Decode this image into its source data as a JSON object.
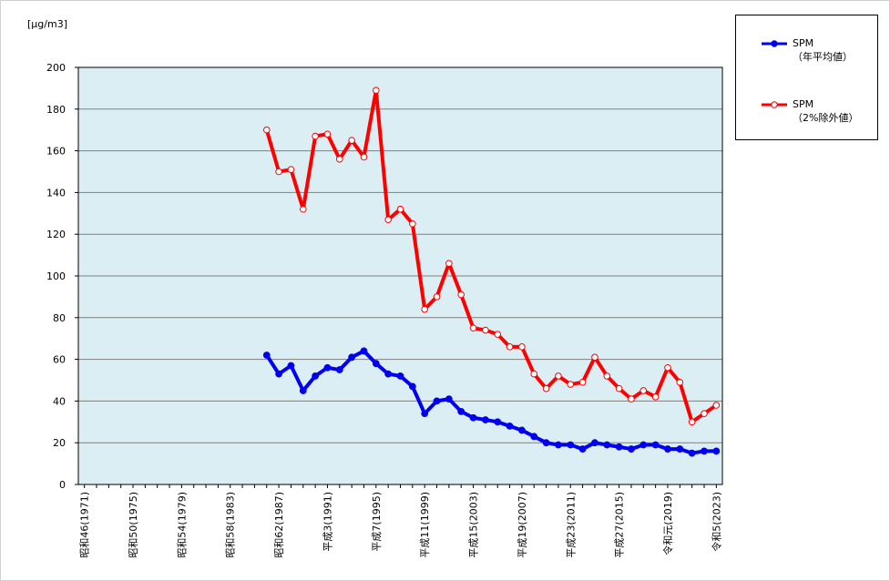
{
  "chart_data": {
    "type": "line",
    "unit": "[μg/m3]",
    "ylim": [
      0,
      200
    ],
    "yticks": [
      0,
      20,
      40,
      60,
      80,
      100,
      120,
      140,
      160,
      180,
      200
    ],
    "grid": true,
    "legend_position": "top-right",
    "x_tick_labels": [
      {
        "x": 1971,
        "label": "昭和46(1971)"
      },
      {
        "x": 1975,
        "label": "昭和50(1975)"
      },
      {
        "x": 1979,
        "label": "昭和54(1979)"
      },
      {
        "x": 1983,
        "label": "昭和58(1983)"
      },
      {
        "x": 1987,
        "label": "昭和62(1987)"
      },
      {
        "x": 1991,
        "label": "平成3(1991)"
      },
      {
        "x": 1995,
        "label": "平成7(1995)"
      },
      {
        "x": 1999,
        "label": "平成11(1999)"
      },
      {
        "x": 2003,
        "label": "平成15(2003)"
      },
      {
        "x": 2007,
        "label": "平成19(2007)"
      },
      {
        "x": 2011,
        "label": "平成23(2011)"
      },
      {
        "x": 2015,
        "label": "平成27(2015)"
      },
      {
        "x": 2019,
        "label": "令和元(2019)"
      },
      {
        "x": 2023,
        "label": "令和5(2023)"
      }
    ],
    "xlim": [
      1970.5,
      2023.5
    ],
    "series": [
      {
        "name": "SPM",
        "name_line2": "（年平均値）",
        "color": "#0000ee",
        "marker": "filled",
        "x": [
          1986,
          1987,
          1988,
          1989,
          1990,
          1991,
          1992,
          1993,
          1994,
          1995,
          1996,
          1997,
          1998,
          1999,
          2000,
          2001,
          2002,
          2003,
          2004,
          2005,
          2006,
          2007,
          2008,
          2009,
          2010,
          2011,
          2012,
          2013,
          2014,
          2015,
          2016,
          2017,
          2018,
          2019,
          2020,
          2021,
          2022,
          2023
        ],
        "values": [
          62,
          53,
          57,
          45,
          52,
          56,
          55,
          61,
          64,
          58,
          53,
          52,
          47,
          34,
          40,
          41,
          35,
          32,
          31,
          30,
          28,
          26,
          23,
          20,
          19,
          19,
          17,
          20,
          19,
          18,
          17,
          19,
          19,
          17,
          17,
          15,
          16,
          16
        ]
      },
      {
        "name": "SPM",
        "name_line2": "（2%除外値）",
        "color": "#ff0000",
        "marker": "open",
        "x": [
          1986,
          1987,
          1988,
          1989,
          1990,
          1991,
          1992,
          1993,
          1994,
          1995,
          1996,
          1997,
          1998,
          1999,
          2000,
          2001,
          2002,
          2003,
          2004,
          2005,
          2006,
          2007,
          2008,
          2009,
          2010,
          2011,
          2012,
          2013,
          2014,
          2015,
          2016,
          2017,
          2018,
          2019,
          2020,
          2021,
          2022,
          2023
        ],
        "values": [
          170,
          150,
          151,
          132,
          167,
          168,
          156,
          165,
          157,
          189,
          127,
          132,
          125,
          84,
          90,
          106,
          91,
          75,
          74,
          72,
          66,
          66,
          53,
          46,
          52,
          48,
          49,
          61,
          52,
          46,
          41,
          45,
          42,
          56,
          49,
          30,
          34,
          38
        ]
      }
    ]
  }
}
